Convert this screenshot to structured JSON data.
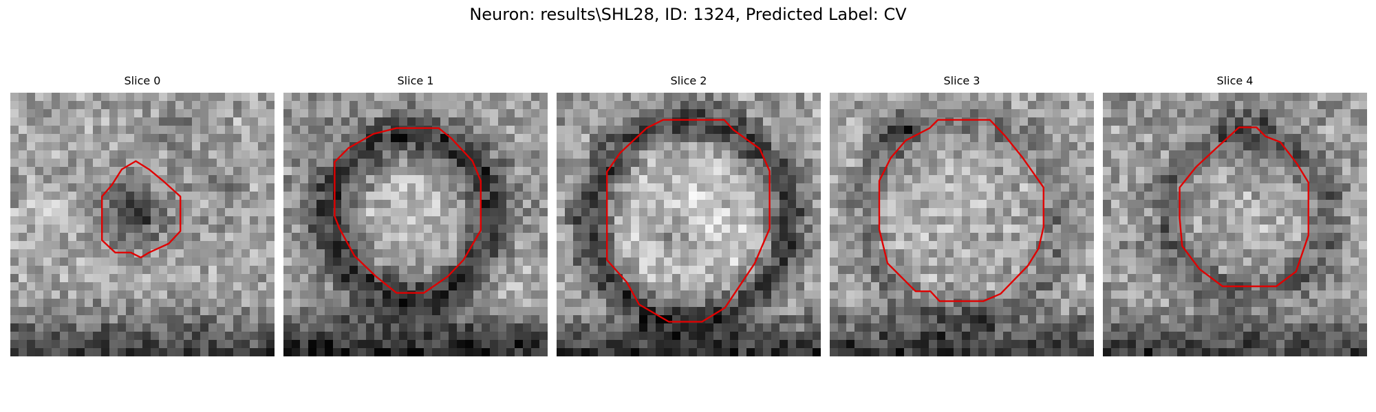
{
  "figure": {
    "title": "Neuron: results\\SHL28, ID: 1324, Predicted Label: CV"
  },
  "panels": [
    {
      "title": "Slice 0"
    },
    {
      "title": "Slice 1"
    },
    {
      "title": "Slice 2"
    },
    {
      "title": "Slice 3"
    },
    {
      "title": "Slice 4"
    }
  ],
  "colors": {
    "contour": "#e00000",
    "background": "#ffffff"
  }
}
